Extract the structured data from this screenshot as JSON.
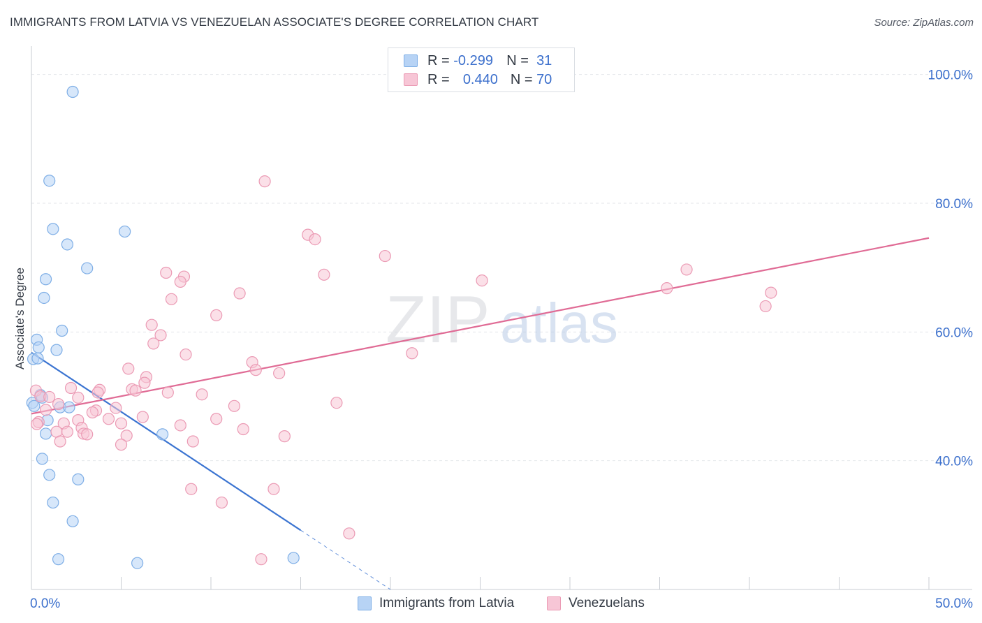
{
  "header": {
    "title": "IMMIGRANTS FROM LATVIA VS VENEZUELAN ASSOCIATE'S DEGREE CORRELATION CHART",
    "source": "Source: ZipAtlas.com"
  },
  "watermark": {
    "part1": "ZIP",
    "part2": "atlas"
  },
  "colors": {
    "blue_fill": "#b7d3f5",
    "blue_stroke": "#7eaee6",
    "blue_line": "#3b74d1",
    "pink_fill": "#f7c6d6",
    "pink_stroke": "#eb9ab4",
    "pink_line": "#e06b95",
    "tick_label": "#3b6fcc",
    "grid": "#e3e6ea"
  },
  "legend": {
    "rows": [
      {
        "r_label": "R =",
        "r_value": "-0.299",
        "n_label": "N =",
        "n_value": "31"
      },
      {
        "r_label": "R =",
        "r_value": "0.440",
        "n_label": "N =",
        "n_value": "70"
      }
    ]
  },
  "bottom_legend": [
    "Immigrants from Latvia",
    "Venezuelans"
  ],
  "chart_data": {
    "type": "scatter",
    "ylabel": "Associate's Degree",
    "xlim": [
      0,
      50
    ],
    "ylim": [
      20,
      103
    ],
    "x_tick_labels": [
      {
        "value": 0,
        "label": "0.0%"
      },
      {
        "value": 50,
        "label": "50.0%"
      }
    ],
    "y_tick_labels": [
      {
        "value": 100,
        "label": "100.0%"
      },
      {
        "value": 80,
        "label": "80.0%"
      },
      {
        "value": 60,
        "label": "60.0%"
      },
      {
        "value": 40,
        "label": "40.0%"
      }
    ],
    "y_gridlines": [
      100,
      80,
      60,
      40
    ],
    "x_minor_ticks": [
      5,
      10,
      15,
      20,
      25,
      30,
      35,
      40,
      45,
      50
    ],
    "series": [
      {
        "name": "Immigrants from Latvia",
        "color": "blue",
        "points": [
          [
            2.3,
            97.3
          ],
          [
            1.0,
            83.5
          ],
          [
            1.2,
            76.0
          ],
          [
            5.2,
            75.6
          ],
          [
            2.0,
            73.6
          ],
          [
            3.1,
            69.9
          ],
          [
            0.8,
            68.2
          ],
          [
            0.7,
            65.3
          ],
          [
            1.7,
            60.2
          ],
          [
            0.3,
            58.8
          ],
          [
            0.4,
            57.6
          ],
          [
            1.4,
            57.2
          ],
          [
            0.1,
            55.8
          ],
          [
            0.35,
            55.9
          ],
          [
            0.5,
            50.2
          ],
          [
            0.6,
            49.8
          ],
          [
            0.05,
            49.0
          ],
          [
            0.15,
            48.5
          ],
          [
            1.6,
            48.3
          ],
          [
            2.1,
            48.3
          ],
          [
            0.9,
            46.3
          ],
          [
            0.8,
            44.2
          ],
          [
            7.3,
            44.1
          ],
          [
            0.6,
            40.3
          ],
          [
            1.0,
            37.8
          ],
          [
            2.6,
            37.1
          ],
          [
            1.2,
            33.5
          ],
          [
            2.3,
            30.6
          ],
          [
            1.5,
            24.7
          ],
          [
            5.9,
            24.1
          ],
          [
            14.6,
            24.9
          ]
        ]
      },
      {
        "name": "Venezuelans",
        "color": "pink",
        "points": [
          [
            13.0,
            83.4
          ],
          [
            15.4,
            75.1
          ],
          [
            15.8,
            74.4
          ],
          [
            19.7,
            71.8
          ],
          [
            7.5,
            69.2
          ],
          [
            8.5,
            68.6
          ],
          [
            16.3,
            68.9
          ],
          [
            25.1,
            68.0
          ],
          [
            36.5,
            69.7
          ],
          [
            8.3,
            67.8
          ],
          [
            35.4,
            66.8
          ],
          [
            11.6,
            66.0
          ],
          [
            41.2,
            66.1
          ],
          [
            7.8,
            65.1
          ],
          [
            40.9,
            64.0
          ],
          [
            10.3,
            62.6
          ],
          [
            6.7,
            61.1
          ],
          [
            7.2,
            59.5
          ],
          [
            6.8,
            58.2
          ],
          [
            8.6,
            56.5
          ],
          [
            21.2,
            56.7
          ],
          [
            12.3,
            55.3
          ],
          [
            12.5,
            54.1
          ],
          [
            5.4,
            54.3
          ],
          [
            13.8,
            53.6
          ],
          [
            6.4,
            53.0
          ],
          [
            6.3,
            52.1
          ],
          [
            2.2,
            51.3
          ],
          [
            5.6,
            51.1
          ],
          [
            3.8,
            51.0
          ],
          [
            5.8,
            50.9
          ],
          [
            7.6,
            50.6
          ],
          [
            3.7,
            50.6
          ],
          [
            0.25,
            50.9
          ],
          [
            9.5,
            50.3
          ],
          [
            0.5,
            50.0
          ],
          [
            1.0,
            49.9
          ],
          [
            2.6,
            49.8
          ],
          [
            1.5,
            48.8
          ],
          [
            17.0,
            49.0
          ],
          [
            11.3,
            48.5
          ],
          [
            4.7,
            48.2
          ],
          [
            3.6,
            47.8
          ],
          [
            0.8,
            47.9
          ],
          [
            3.4,
            47.5
          ],
          [
            10.3,
            46.5
          ],
          [
            6.2,
            46.8
          ],
          [
            4.3,
            46.5
          ],
          [
            2.6,
            46.3
          ],
          [
            1.8,
            45.8
          ],
          [
            0.4,
            46.0
          ],
          [
            5.0,
            45.8
          ],
          [
            8.3,
            45.5
          ],
          [
            2.8,
            45.1
          ],
          [
            11.8,
            44.9
          ],
          [
            1.4,
            44.5
          ],
          [
            2.0,
            44.5
          ],
          [
            2.9,
            44.2
          ],
          [
            3.1,
            44.1
          ],
          [
            5.3,
            43.9
          ],
          [
            14.1,
            43.8
          ],
          [
            1.6,
            43.0
          ],
          [
            9.0,
            43.0
          ],
          [
            5.0,
            42.5
          ],
          [
            8.9,
            35.6
          ],
          [
            13.5,
            35.6
          ],
          [
            10.6,
            33.5
          ],
          [
            17.7,
            28.7
          ],
          [
            12.8,
            24.7
          ],
          [
            0.3,
            45.7
          ]
        ]
      }
    ],
    "trend_lines": [
      {
        "series": "Immigrants from Latvia",
        "x_start": 0,
        "y_start": 56.8,
        "x_end": 15.0,
        "y_end": 29.2,
        "dashed_to_x": 20.0,
        "dashed_to_y": 20.0
      },
      {
        "series": "Venezuelans",
        "x_start": 0,
        "y_start": 47.3,
        "x_end": 50,
        "y_end": 74.6
      }
    ]
  }
}
